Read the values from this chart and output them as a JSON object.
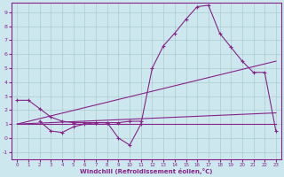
{
  "bg_color": "#cce8ee",
  "grid_color": "#aacccc",
  "line_color": "#882288",
  "xlabel": "Windchill (Refroidissement éolien,°C)",
  "xlim": [
    -0.5,
    23.5
  ],
  "ylim": [
    -1.5,
    9.7
  ],
  "yticks": [
    -1,
    0,
    1,
    2,
    3,
    4,
    5,
    6,
    7,
    8,
    9
  ],
  "xticks": [
    0,
    1,
    2,
    3,
    4,
    5,
    6,
    7,
    8,
    9,
    10,
    11,
    12,
    13,
    14,
    15,
    16,
    17,
    18,
    19,
    20,
    21,
    22,
    23
  ],
  "lines": [
    {
      "x": [
        0,
        1,
        2,
        3,
        4,
        5,
        6,
        7,
        8,
        9,
        10,
        11
      ],
      "y": [
        2.7,
        2.7,
        2.1,
        1.5,
        1.2,
        1.1,
        1.1,
        1.1,
        1.1,
        1.1,
        1.2,
        1.2
      ],
      "marker": true
    },
    {
      "x": [
        0,
        23
      ],
      "y": [
        1.0,
        5.5
      ],
      "marker": false
    },
    {
      "x": [
        0,
        23
      ],
      "y": [
        1.0,
        1.8
      ],
      "marker": false
    },
    {
      "x": [
        0,
        23
      ],
      "y": [
        1.0,
        1.0
      ],
      "marker": false
    },
    {
      "x": [
        2,
        3,
        4,
        5,
        6,
        7,
        8,
        9,
        10,
        11,
        12,
        13,
        14,
        15,
        16,
        17,
        18,
        19,
        20,
        21,
        22,
        23
      ],
      "y": [
        1.2,
        0.5,
        0.4,
        0.8,
        1.0,
        1.1,
        1.1,
        0.0,
        -0.5,
        1.0,
        5.0,
        6.6,
        7.5,
        8.5,
        9.4,
        9.5,
        7.5,
        6.5,
        5.5,
        4.7,
        4.7,
        0.5
      ],
      "marker": true
    }
  ]
}
